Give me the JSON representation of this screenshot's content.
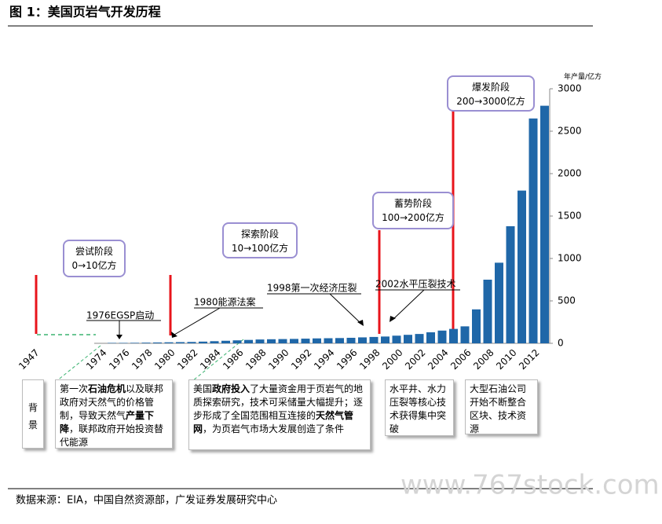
{
  "chart_data": {
    "type": "bar",
    "title": "图 1：美国页岩气开发历程",
    "y_axis_label": "年产量/亿方",
    "color": "#1f67a8",
    "categories": [
      "1947",
      "1974",
      null,
      "1976",
      null,
      "1978",
      null,
      "1980",
      null,
      "1982",
      null,
      "1984",
      null,
      "1986",
      null,
      "1988",
      null,
      "1990",
      null,
      "1992",
      null,
      "1994",
      null,
      "1996",
      null,
      "1998",
      null,
      "2000",
      null,
      "2002",
      null,
      "2004",
      null,
      "2006",
      null,
      "2008",
      null,
      "2010",
      null,
      "2012",
      null
    ],
    "values": [
      null,
      null,
      5,
      5,
      6,
      8,
      10,
      12,
      14,
      16,
      20,
      25,
      30,
      35,
      40,
      45,
      48,
      50,
      52,
      55,
      58,
      60,
      62,
      65,
      70,
      75,
      80,
      90,
      100,
      110,
      130,
      150,
      170,
      200,
      400,
      750,
      950,
      1380,
      1800,
      2650,
      2800
    ],
    "ylim": [
      0,
      3000
    ],
    "yticks": [
      0,
      500,
      1000,
      1500,
      2000,
      2500,
      3000
    ],
    "stages": [
      {
        "name": "尝试阶段",
        "range": "0→10亿方"
      },
      {
        "name": "探索阶段",
        "range": "10→100亿方"
      },
      {
        "name": "蓄势阶段",
        "range": "100→200亿方"
      },
      {
        "name": "爆发阶段",
        "range": "200→3000亿方"
      }
    ],
    "events": [
      "1976EGSP启动",
      "1980能源法案",
      "1998第一次经济压裂",
      "2002水平压裂技术"
    ],
    "background_label": "背景",
    "background_notes": [
      [
        "第一次",
        "石油危机",
        "以及联邦政府对天然气的价格管制，导致天然气",
        "产量下降",
        "，联邦政府开始投资替代能源"
      ],
      [
        "美国",
        "政府投入",
        "了大量资金用于页岩气的地质探索研究，技术可采储量大幅提升；逐步形成了全国范围相互连接的",
        "天然气管网",
        "，为页岩气市场大发展创造了条件"
      ],
      [
        "水平井、水力压裂等核心技术获得集中突破"
      ],
      [
        "大型石油公司开始不断整合区块、技术资源"
      ]
    ],
    "source": "数据来源：EIA，中国自然资源部，广发证券发展研究中心",
    "watermark": "www.767stock.com"
  }
}
